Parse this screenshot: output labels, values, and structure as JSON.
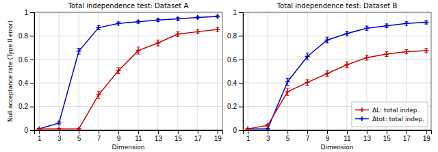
{
  "chart_data": [
    {
      "type": "line",
      "title": "Total independence test: Dataset A",
      "xlabel": "Dimension",
      "ylabel": "Null acceptance rate (Type II error)",
      "x": [
        1,
        3,
        5,
        7,
        9,
        11,
        13,
        15,
        17,
        19
      ],
      "series": [
        {
          "name": "Δtot: total indep.",
          "color": "#0000cc",
          "marker": "plus",
          "values": [
            0.01,
            0.06,
            0.67,
            0.87,
            0.905,
            0.92,
            0.935,
            0.945,
            0.957,
            0.965
          ],
          "error": [
            0.005,
            0.015,
            0.025,
            0.018,
            0.013,
            0.013,
            0.012,
            0.012,
            0.011,
            0.011
          ]
        },
        {
          "name": "ΔL: total indep.",
          "color": "#cc0000",
          "marker": "plus",
          "values": [
            0.01,
            0.01,
            0.01,
            0.3,
            0.505,
            0.675,
            0.74,
            0.815,
            0.835,
            0.855
          ],
          "error": [
            0.005,
            0.005,
            0.005,
            0.03,
            0.025,
            0.03,
            0.025,
            0.02,
            0.018,
            0.018
          ]
        }
      ],
      "xlim": [
        0.5,
        19.5
      ],
      "ylim": [
        0,
        1.0
      ],
      "xticks": [
        1,
        3,
        5,
        7,
        9,
        11,
        13,
        15,
        17,
        19
      ],
      "yticks": [
        0,
        0.2,
        0.4,
        0.6,
        0.8,
        1
      ],
      "grid": true
    },
    {
      "type": "line",
      "title": "Total independence test: Dataset B",
      "xlabel": "Dimension",
      "x": [
        1,
        3,
        5,
        7,
        9,
        11,
        13,
        15,
        17,
        19
      ],
      "series": [
        {
          "name": "Δtot: total indep.",
          "color": "#0000cc",
          "marker": "plus",
          "values": [
            0.01,
            0.01,
            0.41,
            0.625,
            0.765,
            0.82,
            0.865,
            0.885,
            0.905,
            0.915
          ],
          "error": [
            0.005,
            0.005,
            0.03,
            0.03,
            0.025,
            0.02,
            0.018,
            0.016,
            0.015,
            0.014
          ]
        },
        {
          "name": "ΔL: total indep.",
          "color": "#cc0000",
          "marker": "plus",
          "values": [
            0.01,
            0.04,
            0.325,
            0.405,
            0.48,
            0.555,
            0.615,
            0.645,
            0.665,
            0.675
          ],
          "error": [
            0.005,
            0.01,
            0.03,
            0.025,
            0.025,
            0.025,
            0.022,
            0.02,
            0.018,
            0.018
          ]
        }
      ],
      "xlim": [
        0.5,
        19.5
      ],
      "ylim": [
        0,
        1.0
      ],
      "xticks": [
        1,
        3,
        5,
        7,
        9,
        11,
        13,
        15,
        17,
        19
      ],
      "yticks": [
        0,
        0.2,
        0.4,
        0.6,
        0.8,
        1
      ],
      "grid": true,
      "legend": "lower right"
    }
  ]
}
